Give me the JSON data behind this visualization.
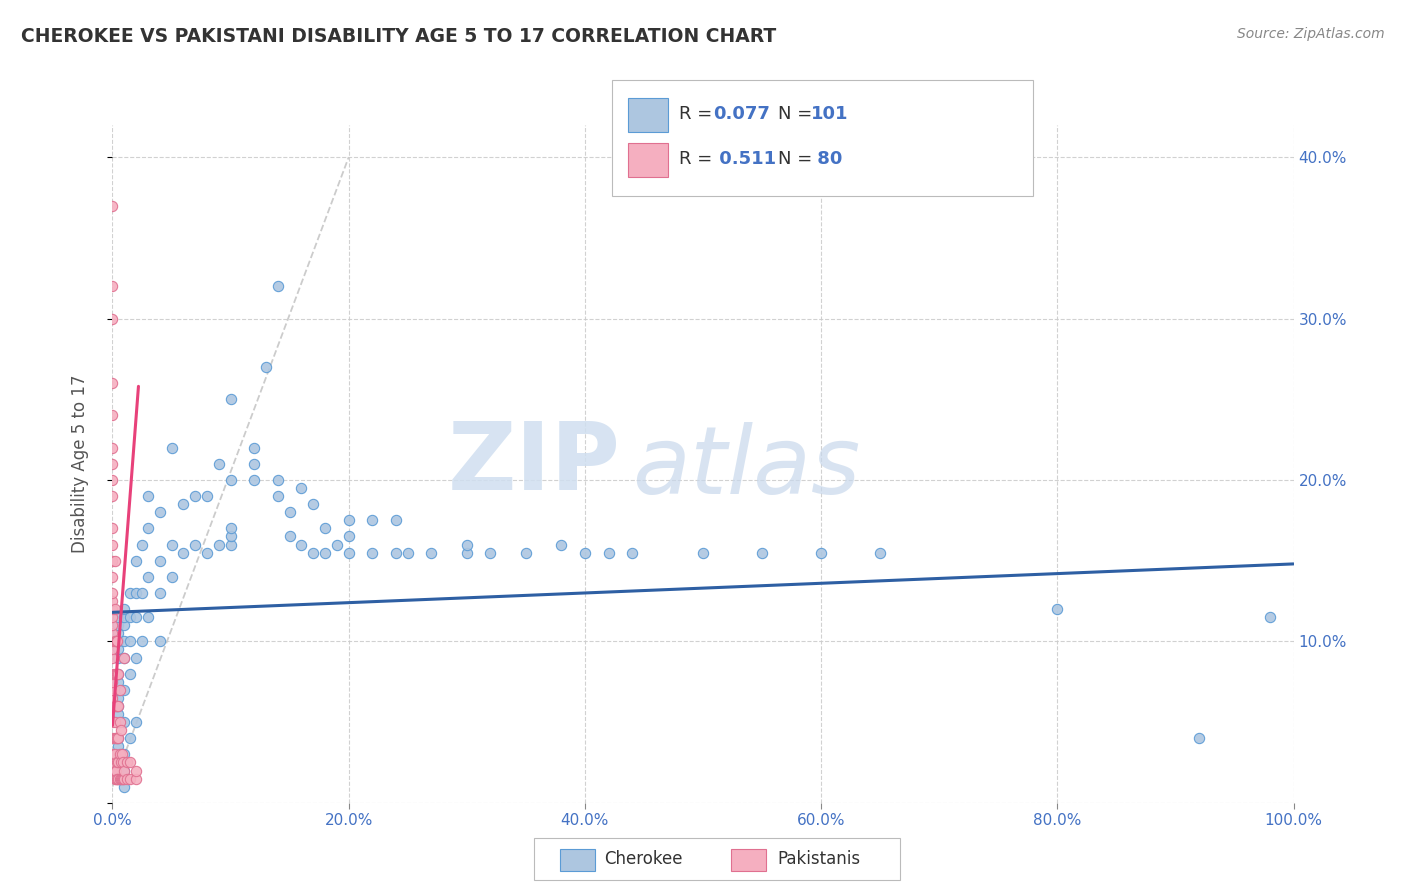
{
  "title": "CHEROKEE VS PAKISTANI DISABILITY AGE 5 TO 17 CORRELATION CHART",
  "source": "Source: ZipAtlas.com",
  "ylabel": "Disability Age 5 to 17",
  "xlim": [
    0.0,
    1.0
  ],
  "ylim": [
    0.0,
    0.42
  ],
  "x_ticks": [
    0.0,
    0.2,
    0.4,
    0.6,
    0.8,
    1.0
  ],
  "x_tick_labels": [
    "0.0%",
    "20.0%",
    "40.0%",
    "60.0%",
    "80.0%",
    "100.0%"
  ],
  "y_ticks": [
    0.0,
    0.1,
    0.2,
    0.3,
    0.4
  ],
  "y_tick_labels": [
    "",
    "10.0%",
    "20.0%",
    "30.0%",
    "40.0%"
  ],
  "y_tick_labels_right": [
    "",
    "10.0%",
    "20.0%",
    "30.0%",
    "40.0%"
  ],
  "cherokee_color": "#adc6e0",
  "pakistani_color": "#f5afc0",
  "cherokee_edge": "#5b9bd5",
  "pakistani_edge": "#e07090",
  "trend_cherokee_color": "#2e5fa3",
  "trend_pakistani_color": "#e8417a",
  "watermark_zip": "ZIP",
  "watermark_atlas": "atlas",
  "cherokee_scatter": [
    [
      0.005,
      0.015
    ],
    [
      0.005,
      0.02
    ],
    [
      0.005,
      0.03
    ],
    [
      0.005,
      0.035
    ],
    [
      0.005,
      0.04
    ],
    [
      0.005,
      0.05
    ],
    [
      0.005,
      0.055
    ],
    [
      0.005,
      0.06
    ],
    [
      0.005,
      0.065
    ],
    [
      0.005,
      0.07
    ],
    [
      0.005,
      0.075
    ],
    [
      0.005,
      0.08
    ],
    [
      0.005,
      0.09
    ],
    [
      0.005,
      0.095
    ],
    [
      0.005,
      0.1
    ],
    [
      0.005,
      0.105
    ],
    [
      0.005,
      0.11
    ],
    [
      0.005,
      0.115
    ],
    [
      0.01,
      0.01
    ],
    [
      0.01,
      0.02
    ],
    [
      0.01,
      0.03
    ],
    [
      0.01,
      0.05
    ],
    [
      0.01,
      0.07
    ],
    [
      0.01,
      0.09
    ],
    [
      0.01,
      0.1
    ],
    [
      0.01,
      0.11
    ],
    [
      0.01,
      0.115
    ],
    [
      0.01,
      0.12
    ],
    [
      0.015,
      0.04
    ],
    [
      0.015,
      0.08
    ],
    [
      0.015,
      0.1
    ],
    [
      0.015,
      0.115
    ],
    [
      0.015,
      0.13
    ],
    [
      0.02,
      0.05
    ],
    [
      0.02,
      0.09
    ],
    [
      0.02,
      0.115
    ],
    [
      0.02,
      0.13
    ],
    [
      0.02,
      0.15
    ],
    [
      0.025,
      0.1
    ],
    [
      0.025,
      0.13
    ],
    [
      0.025,
      0.16
    ],
    [
      0.03,
      0.115
    ],
    [
      0.03,
      0.14
    ],
    [
      0.03,
      0.17
    ],
    [
      0.03,
      0.19
    ],
    [
      0.04,
      0.1
    ],
    [
      0.04,
      0.13
    ],
    [
      0.04,
      0.15
    ],
    [
      0.04,
      0.18
    ],
    [
      0.05,
      0.14
    ],
    [
      0.05,
      0.16
    ],
    [
      0.05,
      0.22
    ],
    [
      0.06,
      0.155
    ],
    [
      0.06,
      0.185
    ],
    [
      0.07,
      0.16
    ],
    [
      0.07,
      0.19
    ],
    [
      0.08,
      0.155
    ],
    [
      0.08,
      0.19
    ],
    [
      0.09,
      0.16
    ],
    [
      0.09,
      0.21
    ],
    [
      0.1,
      0.16
    ],
    [
      0.1,
      0.165
    ],
    [
      0.1,
      0.17
    ],
    [
      0.1,
      0.2
    ],
    [
      0.1,
      0.25
    ],
    [
      0.12,
      0.2
    ],
    [
      0.12,
      0.21
    ],
    [
      0.12,
      0.22
    ],
    [
      0.13,
      0.27
    ],
    [
      0.14,
      0.19
    ],
    [
      0.14,
      0.2
    ],
    [
      0.14,
      0.32
    ],
    [
      0.15,
      0.165
    ],
    [
      0.15,
      0.18
    ],
    [
      0.16,
      0.16
    ],
    [
      0.16,
      0.195
    ],
    [
      0.17,
      0.155
    ],
    [
      0.17,
      0.185
    ],
    [
      0.18,
      0.155
    ],
    [
      0.18,
      0.17
    ],
    [
      0.19,
      0.16
    ],
    [
      0.2,
      0.155
    ],
    [
      0.2,
      0.165
    ],
    [
      0.2,
      0.175
    ],
    [
      0.22,
      0.155
    ],
    [
      0.22,
      0.175
    ],
    [
      0.24,
      0.155
    ],
    [
      0.24,
      0.175
    ],
    [
      0.25,
      0.155
    ],
    [
      0.27,
      0.155
    ],
    [
      0.3,
      0.155
    ],
    [
      0.3,
      0.16
    ],
    [
      0.32,
      0.155
    ],
    [
      0.35,
      0.155
    ],
    [
      0.38,
      0.16
    ],
    [
      0.4,
      0.155
    ],
    [
      0.42,
      0.155
    ],
    [
      0.44,
      0.155
    ],
    [
      0.5,
      0.155
    ],
    [
      0.55,
      0.155
    ],
    [
      0.6,
      0.155
    ],
    [
      0.65,
      0.155
    ],
    [
      0.8,
      0.12
    ],
    [
      0.92,
      0.04
    ],
    [
      0.98,
      0.115
    ]
  ],
  "pakistani_scatter": [
    [
      0.0,
      0.02
    ],
    [
      0.0,
      0.025
    ],
    [
      0.0,
      0.03
    ],
    [
      0.0,
      0.04
    ],
    [
      0.0,
      0.05
    ],
    [
      0.0,
      0.06
    ],
    [
      0.0,
      0.065
    ],
    [
      0.0,
      0.07
    ],
    [
      0.0,
      0.075
    ],
    [
      0.0,
      0.08
    ],
    [
      0.0,
      0.09
    ],
    [
      0.0,
      0.095
    ],
    [
      0.0,
      0.1
    ],
    [
      0.0,
      0.105
    ],
    [
      0.0,
      0.11
    ],
    [
      0.0,
      0.115
    ],
    [
      0.0,
      0.12
    ],
    [
      0.0,
      0.125
    ],
    [
      0.0,
      0.13
    ],
    [
      0.0,
      0.14
    ],
    [
      0.0,
      0.15
    ],
    [
      0.0,
      0.16
    ],
    [
      0.0,
      0.17
    ],
    [
      0.0,
      0.19
    ],
    [
      0.0,
      0.2
    ],
    [
      0.0,
      0.21
    ],
    [
      0.0,
      0.22
    ],
    [
      0.0,
      0.24
    ],
    [
      0.0,
      0.26
    ],
    [
      0.0,
      0.3
    ],
    [
      0.0,
      0.32
    ],
    [
      0.0,
      0.37
    ],
    [
      0.002,
      0.015
    ],
    [
      0.002,
      0.02
    ],
    [
      0.002,
      0.03
    ],
    [
      0.002,
      0.04
    ],
    [
      0.002,
      0.05
    ],
    [
      0.002,
      0.06
    ],
    [
      0.002,
      0.08
    ],
    [
      0.002,
      0.1
    ],
    [
      0.002,
      0.12
    ],
    [
      0.002,
      0.15
    ],
    [
      0.003,
      0.015
    ],
    [
      0.003,
      0.02
    ],
    [
      0.003,
      0.04
    ],
    [
      0.003,
      0.06
    ],
    [
      0.003,
      0.08
    ],
    [
      0.003,
      0.1
    ],
    [
      0.004,
      0.015
    ],
    [
      0.004,
      0.025
    ],
    [
      0.004,
      0.04
    ],
    [
      0.004,
      0.06
    ],
    [
      0.004,
      0.08
    ],
    [
      0.004,
      0.1
    ],
    [
      0.005,
      0.015
    ],
    [
      0.005,
      0.025
    ],
    [
      0.005,
      0.04
    ],
    [
      0.005,
      0.06
    ],
    [
      0.005,
      0.08
    ],
    [
      0.006,
      0.015
    ],
    [
      0.006,
      0.03
    ],
    [
      0.006,
      0.05
    ],
    [
      0.006,
      0.07
    ],
    [
      0.007,
      0.015
    ],
    [
      0.007,
      0.025
    ],
    [
      0.007,
      0.045
    ],
    [
      0.008,
      0.015
    ],
    [
      0.008,
      0.03
    ],
    [
      0.009,
      0.015
    ],
    [
      0.009,
      0.025
    ],
    [
      0.01,
      0.015
    ],
    [
      0.01,
      0.02
    ],
    [
      0.01,
      0.09
    ],
    [
      0.012,
      0.015
    ],
    [
      0.012,
      0.025
    ],
    [
      0.015,
      0.015
    ],
    [
      0.015,
      0.025
    ],
    [
      0.02,
      0.015
    ],
    [
      0.02,
      0.02
    ]
  ],
  "cherokee_trend_x": [
    0.0,
    1.0
  ],
  "cherokee_trend_y": [
    0.118,
    0.148
  ],
  "pakistani_trend_x": [
    0.0,
    0.022
  ],
  "pakistani_trend_y": [
    0.048,
    0.258
  ],
  "pakistani_dashed_trend_x": [
    0.0,
    0.2
  ],
  "pakistani_dashed_trend_y": [
    0.01,
    0.4
  ]
}
